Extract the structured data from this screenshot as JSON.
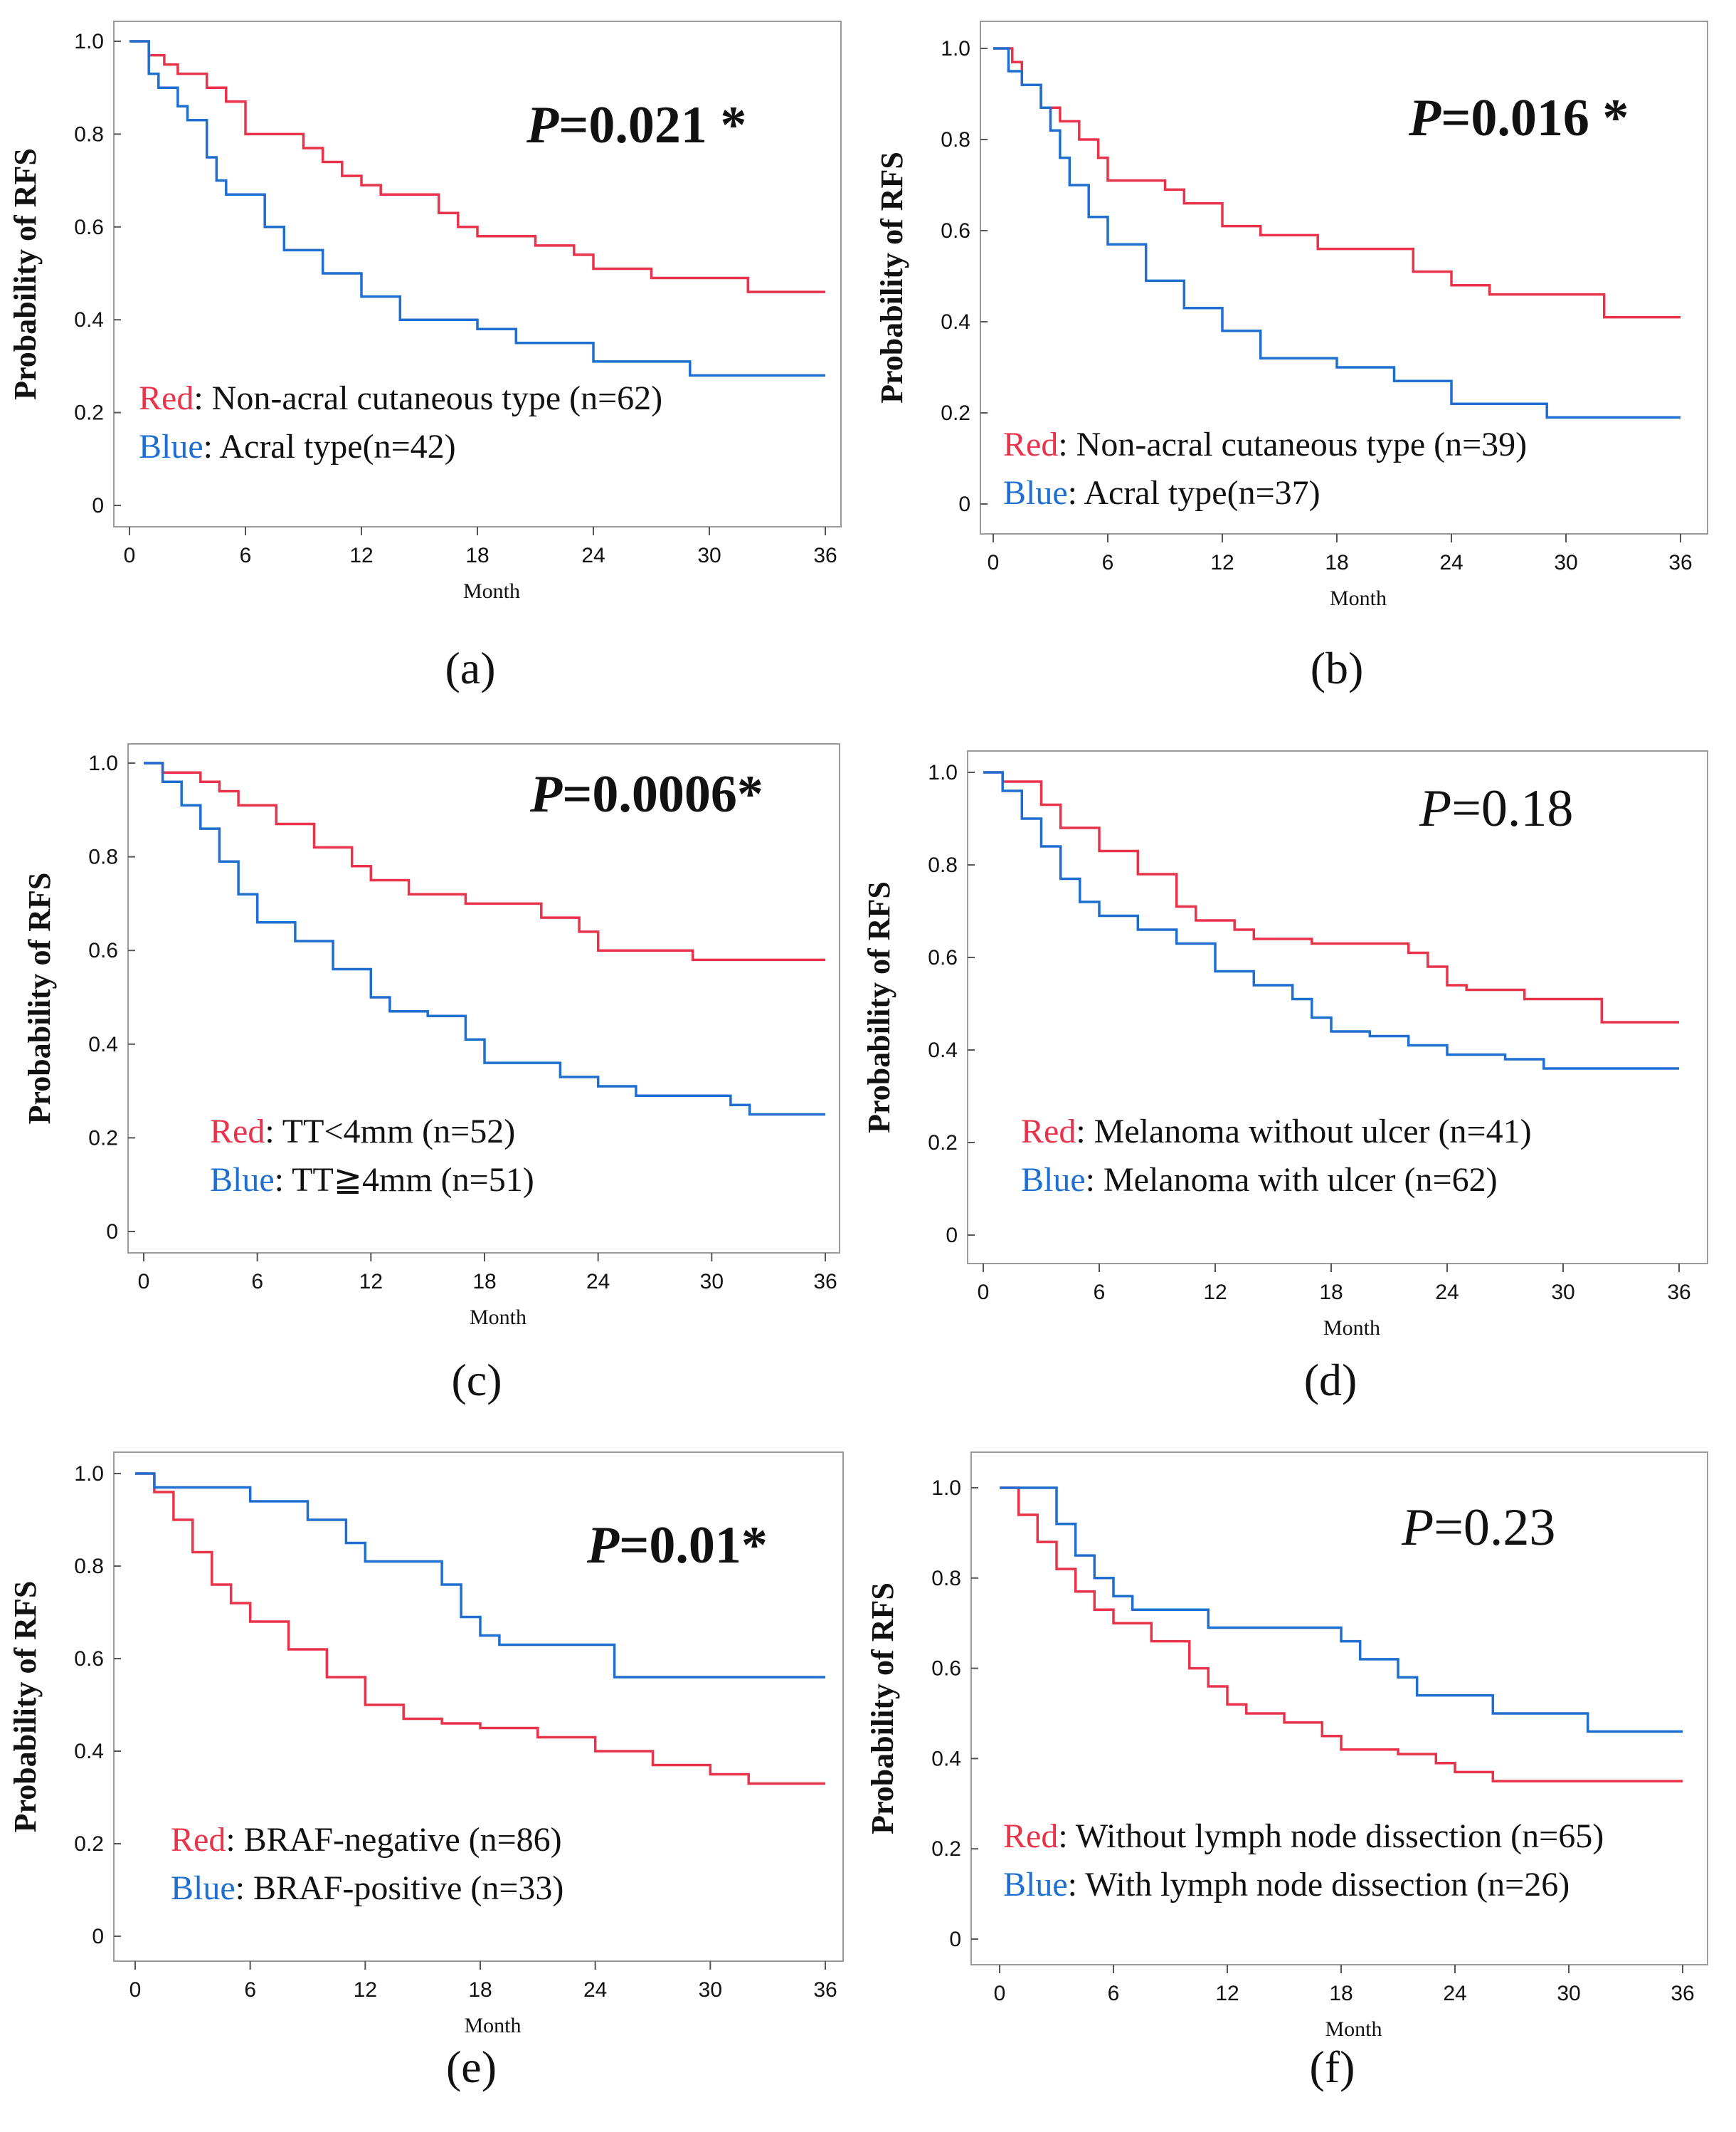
{
  "colors": {
    "red": "#e8334a",
    "blue": "#1f6fd1",
    "frame": "#9a9a9a"
  },
  "chart_data": [
    {
      "type": "line",
      "subtype": "kaplan-meier",
      "caption": "(a)",
      "ylabel": "Probability of RFS",
      "xlabel": "Month",
      "xlim": [
        0,
        36
      ],
      "ylim": [
        0,
        1.0
      ],
      "xticks": [
        "0",
        "6",
        "12",
        "18",
        "24",
        "30",
        "36"
      ],
      "yticks": [
        "0",
        "0.2",
        "0.4",
        "0.6",
        "0.8",
        "1.0"
      ],
      "p_label": "P",
      "p_value": "=0.021 *",
      "p_bold": true,
      "legend": [
        {
          "color_word": "Red",
          "text": ": Non-acral cutaneous type (n=62)"
        },
        {
          "color_word": "Blue",
          "text": ": Acral type(n=42)"
        }
      ],
      "series": [
        {
          "name": "Red",
          "color": "#e8334a",
          "x": [
            0,
            1,
            1.8,
            2.5,
            4,
            5,
            6,
            9,
            10,
            11,
            12,
            13,
            16,
            17,
            18,
            21,
            23,
            24,
            27,
            30,
            32,
            36
          ],
          "values": [
            1.0,
            0.97,
            0.95,
            0.93,
            0.9,
            0.87,
            0.8,
            0.77,
            0.74,
            0.71,
            0.69,
            0.67,
            0.63,
            0.6,
            0.58,
            0.56,
            0.54,
            0.51,
            0.49,
            0.49,
            0.46,
            0.46
          ]
        },
        {
          "name": "Blue",
          "color": "#1f6fd1",
          "x": [
            0,
            1,
            1.5,
            2.5,
            3,
            4,
            4.5,
            5,
            7,
            8,
            10,
            12,
            14,
            18,
            20,
            24,
            29,
            36
          ],
          "values": [
            1.0,
            0.93,
            0.9,
            0.86,
            0.83,
            0.75,
            0.7,
            0.67,
            0.6,
            0.55,
            0.5,
            0.45,
            0.4,
            0.38,
            0.35,
            0.31,
            0.28,
            0.28
          ]
        }
      ]
    },
    {
      "type": "line",
      "subtype": "kaplan-meier",
      "caption": "(b)",
      "ylabel": "Probability of RFS",
      "xlabel": "Month",
      "xlim": [
        0,
        36
      ],
      "ylim": [
        0,
        1.0
      ],
      "xticks": [
        "0",
        "6",
        "12",
        "18",
        "24",
        "30",
        "36"
      ],
      "yticks": [
        "0",
        "0.2",
        "0.4",
        "0.6",
        "0.8",
        "1.0"
      ],
      "p_label": "P",
      "p_value": "=0.016 *",
      "p_bold": true,
      "legend": [
        {
          "color_word": "Red",
          "text": ": Non-acral cutaneous type (n=39)"
        },
        {
          "color_word": "Blue",
          "text": ": Acral type(n=37)"
        }
      ],
      "series": [
        {
          "name": "Red",
          "color": "#e8334a",
          "x": [
            0,
            1,
            1.5,
            2.5,
            3.5,
            4.5,
            5.5,
            6,
            9,
            10,
            12,
            14,
            17,
            20,
            22,
            24,
            26,
            32,
            36
          ],
          "values": [
            1.0,
            0.97,
            0.92,
            0.87,
            0.84,
            0.8,
            0.76,
            0.71,
            0.69,
            0.66,
            0.61,
            0.59,
            0.56,
            0.56,
            0.51,
            0.48,
            0.46,
            0.41,
            0.41
          ]
        },
        {
          "name": "Blue",
          "color": "#1f6fd1",
          "x": [
            0,
            0.8,
            1.5,
            2.5,
            3,
            3.5,
            4,
            5,
            6,
            8,
            10,
            12,
            14,
            18,
            21,
            24,
            29,
            36
          ],
          "values": [
            1.0,
            0.95,
            0.92,
            0.87,
            0.82,
            0.76,
            0.7,
            0.63,
            0.57,
            0.49,
            0.43,
            0.38,
            0.32,
            0.3,
            0.27,
            0.22,
            0.19,
            0.19
          ]
        }
      ]
    },
    {
      "type": "line",
      "subtype": "kaplan-meier",
      "caption": "(c)",
      "ylabel": "Probability of RFS",
      "xlabel": "Month",
      "xlim": [
        0,
        36
      ],
      "ylim": [
        0,
        1.0
      ],
      "xticks": [
        "0",
        "6",
        "12",
        "18",
        "24",
        "30",
        "36"
      ],
      "yticks": [
        "0",
        "0.2",
        "0.4",
        "0.6",
        "0.8",
        "1.0"
      ],
      "p_label": "P",
      "p_value": "=0.0006*",
      "p_bold": true,
      "legend": [
        {
          "color_word": "Red",
          "text": ": TT<4mm   (n=52)"
        },
        {
          "color_word": "Blue",
          "text": ": TT≧4mm  (n=51)"
        }
      ],
      "series": [
        {
          "name": "Red",
          "color": "#e8334a",
          "x": [
            0,
            1,
            3,
            4,
            5,
            7,
            9,
            11,
            12,
            14,
            17,
            18,
            21,
            23,
            24,
            29,
            36
          ],
          "values": [
            1.0,
            0.98,
            0.96,
            0.94,
            0.91,
            0.87,
            0.82,
            0.78,
            0.75,
            0.72,
            0.7,
            0.7,
            0.67,
            0.64,
            0.6,
            0.58,
            0.58
          ]
        },
        {
          "name": "Blue",
          "color": "#1f6fd1",
          "x": [
            0,
            1,
            2,
            3,
            4,
            5,
            6,
            8,
            10,
            12,
            13,
            15,
            17,
            18,
            22,
            24,
            26,
            31,
            32,
            36
          ],
          "values": [
            1.0,
            0.96,
            0.91,
            0.86,
            0.79,
            0.72,
            0.66,
            0.62,
            0.56,
            0.5,
            0.47,
            0.46,
            0.41,
            0.36,
            0.33,
            0.31,
            0.29,
            0.27,
            0.25,
            0.25
          ]
        }
      ]
    },
    {
      "type": "line",
      "subtype": "kaplan-meier",
      "caption": "(d)",
      "ylabel": "Probability of RFS",
      "xlabel": "Month",
      "xlim": [
        0,
        36
      ],
      "ylim": [
        0,
        1.0
      ],
      "xticks": [
        "0",
        "6",
        "12",
        "18",
        "24",
        "30",
        "36"
      ],
      "yticks": [
        "0",
        "0.2",
        "0.4",
        "0.6",
        "0.8",
        "1.0"
      ],
      "p_label": "P",
      "p_value": "=0.18",
      "p_bold": false,
      "legend": [
        {
          "color_word": "Red",
          "text": ": Melanoma without ulcer (n=41)"
        },
        {
          "color_word": "Blue",
          "text": ":  Melanoma with ulcer (n=62)"
        }
      ],
      "series": [
        {
          "name": "Red",
          "color": "#e8334a",
          "x": [
            0,
            1,
            3,
            4,
            6,
            8,
            10,
            11,
            13,
            14,
            17,
            20,
            22,
            23,
            24,
            25,
            28,
            32,
            36
          ],
          "values": [
            1.0,
            0.98,
            0.93,
            0.88,
            0.83,
            0.78,
            0.71,
            0.68,
            0.66,
            0.64,
            0.63,
            0.63,
            0.61,
            0.58,
            0.54,
            0.53,
            0.51,
            0.46,
            0.46
          ]
        },
        {
          "name": "Blue",
          "color": "#1f6fd1",
          "x": [
            0,
            1,
            2,
            3,
            4,
            5,
            6,
            8,
            10,
            12,
            14,
            16,
            17,
            18,
            20,
            22,
            24,
            27,
            29,
            36
          ],
          "values": [
            1.0,
            0.96,
            0.9,
            0.84,
            0.77,
            0.72,
            0.69,
            0.66,
            0.63,
            0.57,
            0.54,
            0.51,
            0.47,
            0.44,
            0.43,
            0.41,
            0.39,
            0.38,
            0.36,
            0.36
          ]
        }
      ]
    },
    {
      "type": "line",
      "subtype": "kaplan-meier",
      "caption": "(e)",
      "ylabel": "Probability of RFS",
      "xlabel": "Month",
      "xlim": [
        0,
        36
      ],
      "ylim": [
        0,
        1.0
      ],
      "xticks": [
        "0",
        "6",
        "12",
        "18",
        "24",
        "30",
        "36"
      ],
      "yticks": [
        "0",
        "0.2",
        "0.4",
        "0.6",
        "0.8",
        "1.0"
      ],
      "p_label": "P",
      "p_value": "=0.01*",
      "p_bold": true,
      "legend": [
        {
          "color_word": "Red",
          "text": ": BRAF-negative   (n=86)"
        },
        {
          "color_word": "Blue",
          "text": ":  BRAF-positive (n=33)"
        }
      ],
      "series": [
        {
          "name": "Red",
          "color": "#e8334a",
          "x": [
            0,
            1,
            2,
            3,
            4,
            5,
            6,
            8,
            10,
            12,
            14,
            16,
            18,
            21,
            24,
            27,
            30,
            32,
            36
          ],
          "values": [
            1.0,
            0.96,
            0.9,
            0.83,
            0.76,
            0.72,
            0.68,
            0.62,
            0.56,
            0.5,
            0.47,
            0.46,
            0.45,
            0.43,
            0.4,
            0.37,
            0.35,
            0.33,
            0.33
          ]
        },
        {
          "name": "Blue",
          "color": "#1f6fd1",
          "x": [
            0,
            1,
            6,
            9,
            11,
            12,
            16,
            17,
            18,
            19,
            25,
            36
          ],
          "values": [
            1.0,
            0.97,
            0.94,
            0.9,
            0.85,
            0.81,
            0.76,
            0.69,
            0.65,
            0.63,
            0.56,
            0.56
          ]
        }
      ]
    },
    {
      "type": "line",
      "subtype": "kaplan-meier",
      "caption": "(f)",
      "ylabel": "Probability of RFS",
      "xlabel": "Month",
      "xlim": [
        0,
        36
      ],
      "ylim": [
        0,
        1.0
      ],
      "xticks": [
        "0",
        "6",
        "12",
        "18",
        "24",
        "30",
        "36"
      ],
      "yticks": [
        "0",
        "0.2",
        "0.4",
        "0.6",
        "0.8",
        "1.0"
      ],
      "p_label": "P",
      "p_value": "=0.23",
      "p_bold": false,
      "legend": [
        {
          "color_word": "Red",
          "text": ": Without lymph node dissection  (n=65)"
        },
        {
          "color_word": "Blue",
          "text": ": With lymph node dissection (n=26)"
        }
      ],
      "series": [
        {
          "name": "Red",
          "color": "#e8334a",
          "x": [
            0,
            1,
            2,
            3,
            4,
            5,
            6,
            8,
            10,
            11,
            12,
            13,
            15,
            17,
            18,
            21,
            23,
            24,
            26,
            36
          ],
          "values": [
            1.0,
            0.94,
            0.88,
            0.82,
            0.77,
            0.73,
            0.7,
            0.66,
            0.6,
            0.56,
            0.52,
            0.5,
            0.48,
            0.45,
            0.42,
            0.41,
            0.39,
            0.37,
            0.35,
            0.35
          ]
        },
        {
          "name": "Blue",
          "color": "#1f6fd1",
          "x": [
            0,
            3,
            4,
            5,
            6,
            7,
            8,
            11,
            18,
            19,
            21,
            22,
            24,
            26,
            29,
            31,
            36
          ],
          "values": [
            1.0,
            0.92,
            0.85,
            0.8,
            0.76,
            0.73,
            0.73,
            0.69,
            0.66,
            0.62,
            0.58,
            0.54,
            0.54,
            0.5,
            0.5,
            0.46,
            0.46
          ]
        }
      ]
    }
  ]
}
